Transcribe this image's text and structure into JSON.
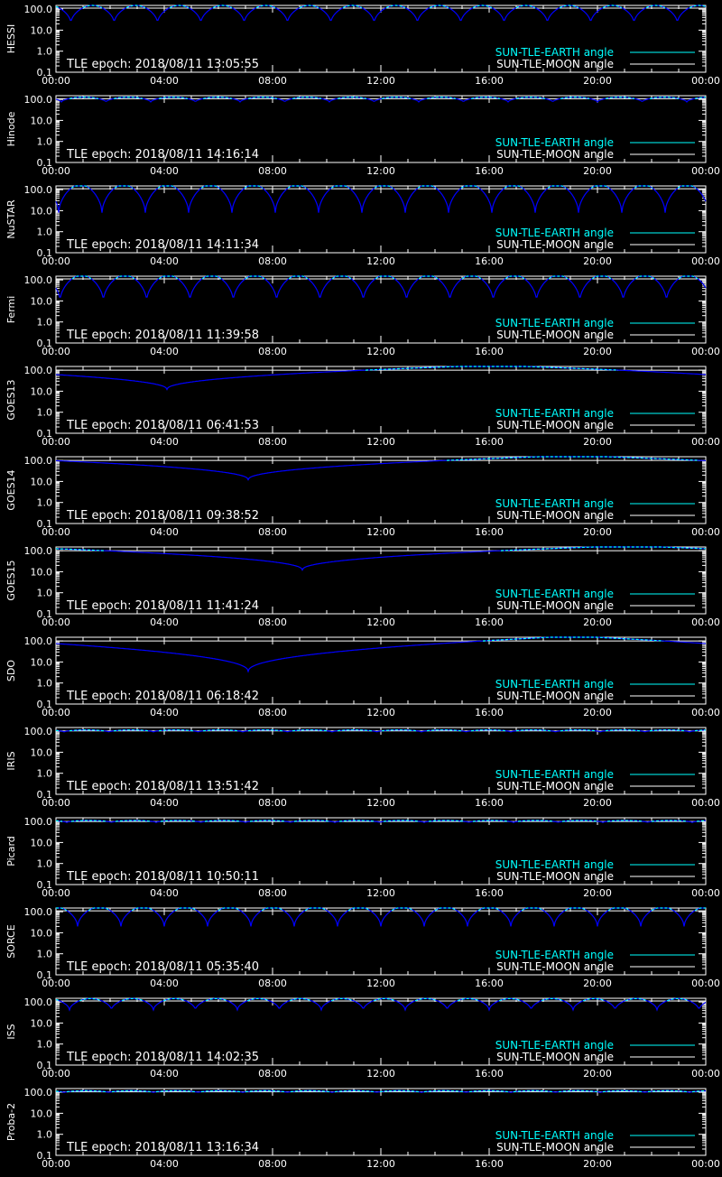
{
  "colors": {
    "background": "#000000",
    "axis": "#ffffff",
    "earth": "#00ffff",
    "moon": "#ffffff",
    "sun_line": "#0000ff"
  },
  "legend": {
    "earth_label": "SUN-TLE-EARTH angle",
    "moon_label": "SUN-TLE-MOON angle"
  },
  "chart_data": [
    {
      "type": "line",
      "ylabel": "HESSI",
      "epoch_text": "TLE epoch: 2018/08/11 13:05:55",
      "xlim": [
        "00:00",
        "24:00"
      ],
      "x_ticks": [
        "00:00",
        "04:00",
        "08:00",
        "12:00",
        "16:00",
        "20:00",
        "00:00"
      ],
      "y_ticks": [
        "100.0",
        "10.0",
        "1.0",
        "0.1"
      ],
      "ylim": [
        0.1,
        150
      ],
      "yscale": "log",
      "series": [
        {
          "name": "SUN-TLE-EARTH angle",
          "pattern": "periodic",
          "period_hours": 1.6,
          "max": 150,
          "min": 22,
          "phase_hours": 0.55
        },
        {
          "name": "SUN-TLE-MOON angle",
          "value": 112
        }
      ]
    },
    {
      "type": "line",
      "ylabel": "Hinode",
      "epoch_text": "TLE epoch: 2018/08/11 14:16:14",
      "xlim": [
        "00:00",
        "24:00"
      ],
      "x_ticks": [
        "00:00",
        "04:00",
        "08:00",
        "12:00",
        "16:00",
        "20:00",
        "00:00"
      ],
      "y_ticks": [
        "100.0",
        "10.0",
        "1.0",
        "0.1"
      ],
      "ylim": [
        0.1,
        150
      ],
      "yscale": "log",
      "series": [
        {
          "name": "SUN-TLE-EARTH angle",
          "pattern": "periodic",
          "period_hours": 1.65,
          "max": 128,
          "min": 75,
          "phase_hours": 0.2
        },
        {
          "name": "SUN-TLE-MOON angle",
          "value": 108
        }
      ]
    },
    {
      "type": "line",
      "ylabel": "NuSTAR",
      "epoch_text": "TLE epoch: 2018/08/11 14:11:34",
      "xlim": [
        "00:00",
        "24:00"
      ],
      "x_ticks": [
        "00:00",
        "04:00",
        "08:00",
        "12:00",
        "16:00",
        "20:00",
        "00:00"
      ],
      "y_ticks": [
        "100.0",
        "10.0",
        "1.0",
        "0.1"
      ],
      "ylim": [
        0.1,
        150
      ],
      "yscale": "log",
      "series": [
        {
          "name": "SUN-TLE-EARTH angle",
          "pattern": "periodic",
          "period_hours": 1.6,
          "max": 170,
          "min": 8,
          "phase_hours": 0.1
        },
        {
          "name": "SUN-TLE-MOON angle",
          "value": 110
        }
      ]
    },
    {
      "type": "line",
      "ylabel": "Fermi",
      "epoch_text": "TLE epoch: 2018/08/11 11:39:58",
      "xlim": [
        "00:00",
        "24:00"
      ],
      "x_ticks": [
        "00:00",
        "04:00",
        "08:00",
        "12:00",
        "16:00",
        "20:00",
        "00:00"
      ],
      "y_ticks": [
        "100.0",
        "10.0",
        "1.0",
        "0.1"
      ],
      "ylim": [
        0.1,
        150
      ],
      "yscale": "log",
      "series": [
        {
          "name": "SUN-TLE-EARTH angle",
          "pattern": "periodic",
          "period_hours": 1.6,
          "max": 165,
          "min": 10,
          "phase_hours": 0.15
        },
        {
          "name": "SUN-TLE-MOON angle",
          "value": 112
        }
      ]
    },
    {
      "type": "line",
      "ylabel": "GOES13",
      "epoch_text": "TLE epoch: 2018/08/11 06:41:53",
      "xlim": [
        "00:00",
        "24:00"
      ],
      "x_ticks": [
        "00:00",
        "04:00",
        "08:00",
        "12:00",
        "16:00",
        "20:00",
        "00:00"
      ],
      "y_ticks": [
        "100.0",
        "10.0",
        "1.0",
        "0.1"
      ],
      "ylim": [
        0.1,
        150
      ],
      "yscale": "log",
      "series": [
        {
          "name": "SUN-TLE-EARTH angle",
          "pattern": "daily",
          "dip_hour": 4.1,
          "min": 12,
          "max": 170,
          "start": 60,
          "end": 75
        },
        {
          "name": "SUN-TLE-MOON angle",
          "value": 100
        }
      ]
    },
    {
      "type": "line",
      "ylabel": "GOES14",
      "epoch_text": "TLE epoch: 2018/08/11 09:38:52",
      "xlim": [
        "00:00",
        "24:00"
      ],
      "x_ticks": [
        "00:00",
        "04:00",
        "08:00",
        "12:00",
        "16:00",
        "20:00",
        "00:00"
      ],
      "y_ticks": [
        "100.0",
        "10.0",
        "1.0",
        "0.1"
      ],
      "ylim": [
        0.1,
        150
      ],
      "yscale": "log",
      "series": [
        {
          "name": "SUN-TLE-EARTH angle",
          "pattern": "daily",
          "dip_hour": 7.1,
          "min": 12,
          "max": 170,
          "start": 100,
          "end": 120
        },
        {
          "name": "SUN-TLE-MOON angle",
          "value": 100
        }
      ]
    },
    {
      "type": "line",
      "ylabel": "GOES15",
      "epoch_text": "TLE epoch: 2018/08/11 11:41:24",
      "xlim": [
        "00:00",
        "24:00"
      ],
      "x_ticks": [
        "00:00",
        "04:00",
        "08:00",
        "12:00",
        "16:00",
        "20:00",
        "00:00"
      ],
      "y_ticks": [
        "100.0",
        "10.0",
        "1.0",
        "0.1"
      ],
      "ylim": [
        0.1,
        150
      ],
      "yscale": "log",
      "series": [
        {
          "name": "SUN-TLE-EARTH angle",
          "pattern": "daily",
          "dip_hour": 9.1,
          "min": 12,
          "max": 170,
          "start": 130,
          "end": 140
        },
        {
          "name": "SUN-TLE-MOON angle",
          "value": 100
        }
      ]
    },
    {
      "type": "line",
      "ylabel": "SDO",
      "epoch_text": "TLE epoch: 2018/08/11 06:18:42",
      "xlim": [
        "00:00",
        "24:00"
      ],
      "x_ticks": [
        "00:00",
        "04:00",
        "08:00",
        "12:00",
        "16:00",
        "20:00",
        "00:00"
      ],
      "y_ticks": [
        "100.0",
        "10.0",
        "1.0",
        "0.1"
      ],
      "ylim": [
        0.1,
        150
      ],
      "yscale": "log",
      "series": [
        {
          "name": "SUN-TLE-EARTH angle",
          "pattern": "daily",
          "dip_hour": 7.1,
          "min": 3.5,
          "max": 170,
          "start": 100,
          "end": 110
        },
        {
          "name": "SUN-TLE-MOON angle",
          "value": 100
        }
      ]
    },
    {
      "type": "line",
      "ylabel": "IRIS",
      "epoch_text": "TLE epoch: 2018/08/11 13:51:42",
      "xlim": [
        "00:00",
        "24:00"
      ],
      "x_ticks": [
        "00:00",
        "04:00",
        "08:00",
        "12:00",
        "16:00",
        "20:00",
        "00:00"
      ],
      "y_ticks": [
        "100.0",
        "10.0",
        "1.0",
        "0.1"
      ],
      "ylim": [
        0.1,
        150
      ],
      "yscale": "log",
      "series": [
        {
          "name": "SUN-TLE-EARTH angle",
          "pattern": "periodic",
          "period_hours": 1.65,
          "max": 115,
          "min": 92,
          "phase_hours": 0.3
        },
        {
          "name": "SUN-TLE-MOON angle",
          "value": 104
        }
      ]
    },
    {
      "type": "line",
      "ylabel": "Picard",
      "epoch_text": "TLE epoch: 2018/08/11 10:50:11",
      "xlim": [
        "00:00",
        "24:00"
      ],
      "x_ticks": [
        "00:00",
        "04:00",
        "08:00",
        "12:00",
        "16:00",
        "20:00",
        "00:00"
      ],
      "y_ticks": [
        "100.0",
        "10.0",
        "1.0",
        "0.1"
      ],
      "ylim": [
        0.1,
        150
      ],
      "yscale": "log",
      "series": [
        {
          "name": "SUN-TLE-EARTH angle",
          "pattern": "periodic",
          "period_hours": 1.65,
          "max": 112,
          "min": 90,
          "phase_hours": 0.4
        },
        {
          "name": "SUN-TLE-MOON angle",
          "value": 100
        }
      ]
    },
    {
      "type": "line",
      "ylabel": "SORCE",
      "epoch_text": "TLE epoch: 2018/08/11 05:35:40",
      "xlim": [
        "00:00",
        "24:00"
      ],
      "x_ticks": [
        "00:00",
        "04:00",
        "08:00",
        "12:00",
        "16:00",
        "20:00",
        "00:00"
      ],
      "y_ticks": [
        "100.0",
        "10.0",
        "1.0",
        "0.1"
      ],
      "ylim": [
        0.1,
        150
      ],
      "yscale": "log",
      "series": [
        {
          "name": "SUN-TLE-EARTH angle",
          "pattern": "periodic",
          "period_hours": 1.6,
          "max": 165,
          "min": 20,
          "phase_hours": 0.8
        },
        {
          "name": "SUN-TLE-MOON angle",
          "value": 110
        }
      ]
    },
    {
      "type": "line",
      "ylabel": "ISS",
      "epoch_text": "TLE epoch: 2018/08/11 14:02:35",
      "xlim": [
        "00:00",
        "24:00"
      ],
      "x_ticks": [
        "00:00",
        "04:00",
        "08:00",
        "12:00",
        "16:00",
        "20:00",
        "00:00"
      ],
      "y_ticks": [
        "100.0",
        "10.0",
        "1.0",
        "0.1"
      ],
      "ylim": [
        0.1,
        150
      ],
      "yscale": "log",
      "series": [
        {
          "name": "SUN-TLE-EARTH angle",
          "pattern": "periodic",
          "period_hours": 1.55,
          "max": 145,
          "min": 42,
          "phase_hours": 0.5
        },
        {
          "name": "SUN-TLE-MOON angle",
          "value": 112
        }
      ]
    },
    {
      "type": "line",
      "ylabel": "Proba-2",
      "epoch_text": "TLE epoch: 2018/08/11 13:16:34",
      "xlim": [
        "00:00",
        "24:00"
      ],
      "x_ticks": [
        "00:00",
        "04:00",
        "08:00",
        "12:00",
        "16:00",
        "20:00",
        "00:00"
      ],
      "y_ticks": [
        "100.0",
        "10.0",
        "1.0",
        "0.1"
      ],
      "ylim": [
        0.1,
        150
      ],
      "yscale": "log",
      "series": [
        {
          "name": "SUN-TLE-EARTH angle",
          "pattern": "periodic",
          "period_hours": 1.65,
          "max": 118,
          "min": 98,
          "phase_hours": 0.3
        },
        {
          "name": "SUN-TLE-MOON angle",
          "value": 105
        }
      ]
    }
  ]
}
